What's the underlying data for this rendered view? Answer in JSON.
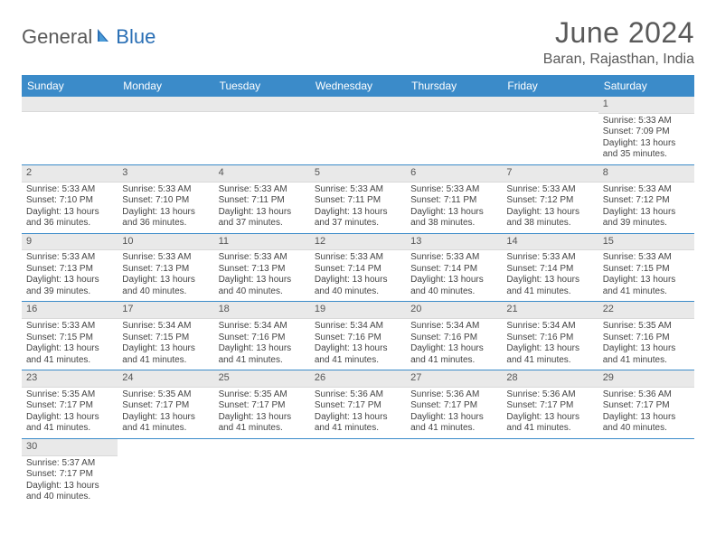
{
  "logo": {
    "part1": "General",
    "part2": "Blue"
  },
  "title": "June 2024",
  "location": "Baran, Rajasthan, India",
  "colors": {
    "header_bg": "#3b8bc9",
    "header_text": "#ffffff",
    "daybar_bg": "#e9e9e9",
    "row_divider": "#3b8bc9",
    "logo_gray": "#5a5a5a",
    "logo_blue": "#2a6fb5"
  },
  "day_headers": [
    "Sunday",
    "Monday",
    "Tuesday",
    "Wednesday",
    "Thursday",
    "Friday",
    "Saturday"
  ],
  "weeks": [
    [
      null,
      null,
      null,
      null,
      null,
      null,
      {
        "n": "1",
        "sr": "Sunrise: 5:33 AM",
        "ss": "Sunset: 7:09 PM",
        "dl": "Daylight: 13 hours and 35 minutes."
      }
    ],
    [
      {
        "n": "2",
        "sr": "Sunrise: 5:33 AM",
        "ss": "Sunset: 7:10 PM",
        "dl": "Daylight: 13 hours and 36 minutes."
      },
      {
        "n": "3",
        "sr": "Sunrise: 5:33 AM",
        "ss": "Sunset: 7:10 PM",
        "dl": "Daylight: 13 hours and 36 minutes."
      },
      {
        "n": "4",
        "sr": "Sunrise: 5:33 AM",
        "ss": "Sunset: 7:11 PM",
        "dl": "Daylight: 13 hours and 37 minutes."
      },
      {
        "n": "5",
        "sr": "Sunrise: 5:33 AM",
        "ss": "Sunset: 7:11 PM",
        "dl": "Daylight: 13 hours and 37 minutes."
      },
      {
        "n": "6",
        "sr": "Sunrise: 5:33 AM",
        "ss": "Sunset: 7:11 PM",
        "dl": "Daylight: 13 hours and 38 minutes."
      },
      {
        "n": "7",
        "sr": "Sunrise: 5:33 AM",
        "ss": "Sunset: 7:12 PM",
        "dl": "Daylight: 13 hours and 38 minutes."
      },
      {
        "n": "8",
        "sr": "Sunrise: 5:33 AM",
        "ss": "Sunset: 7:12 PM",
        "dl": "Daylight: 13 hours and 39 minutes."
      }
    ],
    [
      {
        "n": "9",
        "sr": "Sunrise: 5:33 AM",
        "ss": "Sunset: 7:13 PM",
        "dl": "Daylight: 13 hours and 39 minutes."
      },
      {
        "n": "10",
        "sr": "Sunrise: 5:33 AM",
        "ss": "Sunset: 7:13 PM",
        "dl": "Daylight: 13 hours and 40 minutes."
      },
      {
        "n": "11",
        "sr": "Sunrise: 5:33 AM",
        "ss": "Sunset: 7:13 PM",
        "dl": "Daylight: 13 hours and 40 minutes."
      },
      {
        "n": "12",
        "sr": "Sunrise: 5:33 AM",
        "ss": "Sunset: 7:14 PM",
        "dl": "Daylight: 13 hours and 40 minutes."
      },
      {
        "n": "13",
        "sr": "Sunrise: 5:33 AM",
        "ss": "Sunset: 7:14 PM",
        "dl": "Daylight: 13 hours and 40 minutes."
      },
      {
        "n": "14",
        "sr": "Sunrise: 5:33 AM",
        "ss": "Sunset: 7:14 PM",
        "dl": "Daylight: 13 hours and 41 minutes."
      },
      {
        "n": "15",
        "sr": "Sunrise: 5:33 AM",
        "ss": "Sunset: 7:15 PM",
        "dl": "Daylight: 13 hours and 41 minutes."
      }
    ],
    [
      {
        "n": "16",
        "sr": "Sunrise: 5:33 AM",
        "ss": "Sunset: 7:15 PM",
        "dl": "Daylight: 13 hours and 41 minutes."
      },
      {
        "n": "17",
        "sr": "Sunrise: 5:34 AM",
        "ss": "Sunset: 7:15 PM",
        "dl": "Daylight: 13 hours and 41 minutes."
      },
      {
        "n": "18",
        "sr": "Sunrise: 5:34 AM",
        "ss": "Sunset: 7:16 PM",
        "dl": "Daylight: 13 hours and 41 minutes."
      },
      {
        "n": "19",
        "sr": "Sunrise: 5:34 AM",
        "ss": "Sunset: 7:16 PM",
        "dl": "Daylight: 13 hours and 41 minutes."
      },
      {
        "n": "20",
        "sr": "Sunrise: 5:34 AM",
        "ss": "Sunset: 7:16 PM",
        "dl": "Daylight: 13 hours and 41 minutes."
      },
      {
        "n": "21",
        "sr": "Sunrise: 5:34 AM",
        "ss": "Sunset: 7:16 PM",
        "dl": "Daylight: 13 hours and 41 minutes."
      },
      {
        "n": "22",
        "sr": "Sunrise: 5:35 AM",
        "ss": "Sunset: 7:16 PM",
        "dl": "Daylight: 13 hours and 41 minutes."
      }
    ],
    [
      {
        "n": "23",
        "sr": "Sunrise: 5:35 AM",
        "ss": "Sunset: 7:17 PM",
        "dl": "Daylight: 13 hours and 41 minutes."
      },
      {
        "n": "24",
        "sr": "Sunrise: 5:35 AM",
        "ss": "Sunset: 7:17 PM",
        "dl": "Daylight: 13 hours and 41 minutes."
      },
      {
        "n": "25",
        "sr": "Sunrise: 5:35 AM",
        "ss": "Sunset: 7:17 PM",
        "dl": "Daylight: 13 hours and 41 minutes."
      },
      {
        "n": "26",
        "sr": "Sunrise: 5:36 AM",
        "ss": "Sunset: 7:17 PM",
        "dl": "Daylight: 13 hours and 41 minutes."
      },
      {
        "n": "27",
        "sr": "Sunrise: 5:36 AM",
        "ss": "Sunset: 7:17 PM",
        "dl": "Daylight: 13 hours and 41 minutes."
      },
      {
        "n": "28",
        "sr": "Sunrise: 5:36 AM",
        "ss": "Sunset: 7:17 PM",
        "dl": "Daylight: 13 hours and 41 minutes."
      },
      {
        "n": "29",
        "sr": "Sunrise: 5:36 AM",
        "ss": "Sunset: 7:17 PM",
        "dl": "Daylight: 13 hours and 40 minutes."
      }
    ],
    [
      {
        "n": "30",
        "sr": "Sunrise: 5:37 AM",
        "ss": "Sunset: 7:17 PM",
        "dl": "Daylight: 13 hours and 40 minutes."
      },
      null,
      null,
      null,
      null,
      null,
      null
    ]
  ]
}
